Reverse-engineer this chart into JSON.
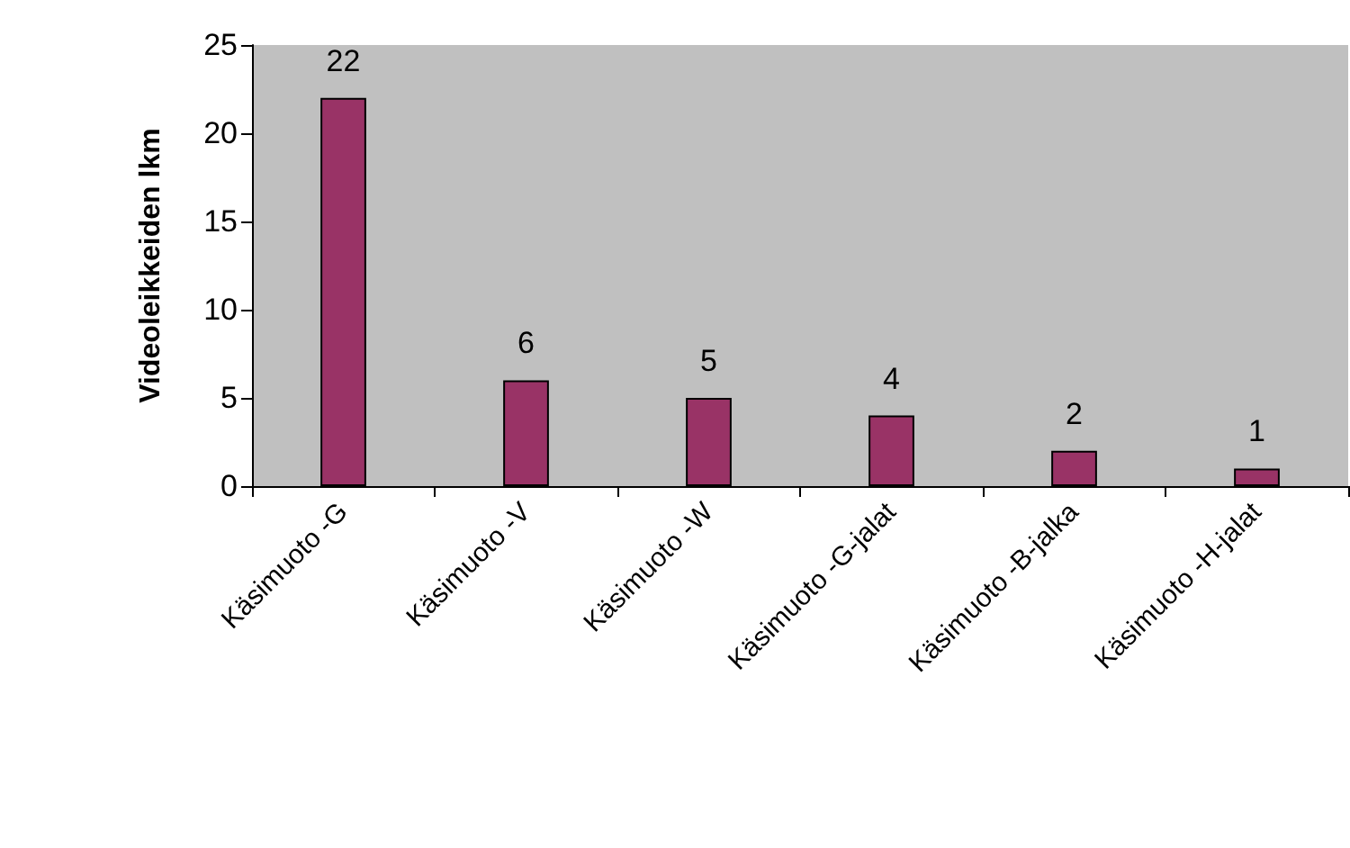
{
  "chart_data": {
    "type": "bar",
    "ylabel": "Videoleikkeiden lkm",
    "categories": [
      "Käsimuoto -G",
      "Käsimuoto -V",
      "Käsimuoto -W",
      "Käsimuoto -G-jalat",
      "Käsimuoto -B-jalka",
      "Käsimuoto -H-jalat"
    ],
    "values": [
      22,
      6,
      5,
      4,
      2,
      1
    ],
    "color": "#993366",
    "ylim": [
      0,
      25
    ],
    "yticks": [
      0,
      5,
      10,
      15,
      20,
      25
    ],
    "data_labels": true
  }
}
